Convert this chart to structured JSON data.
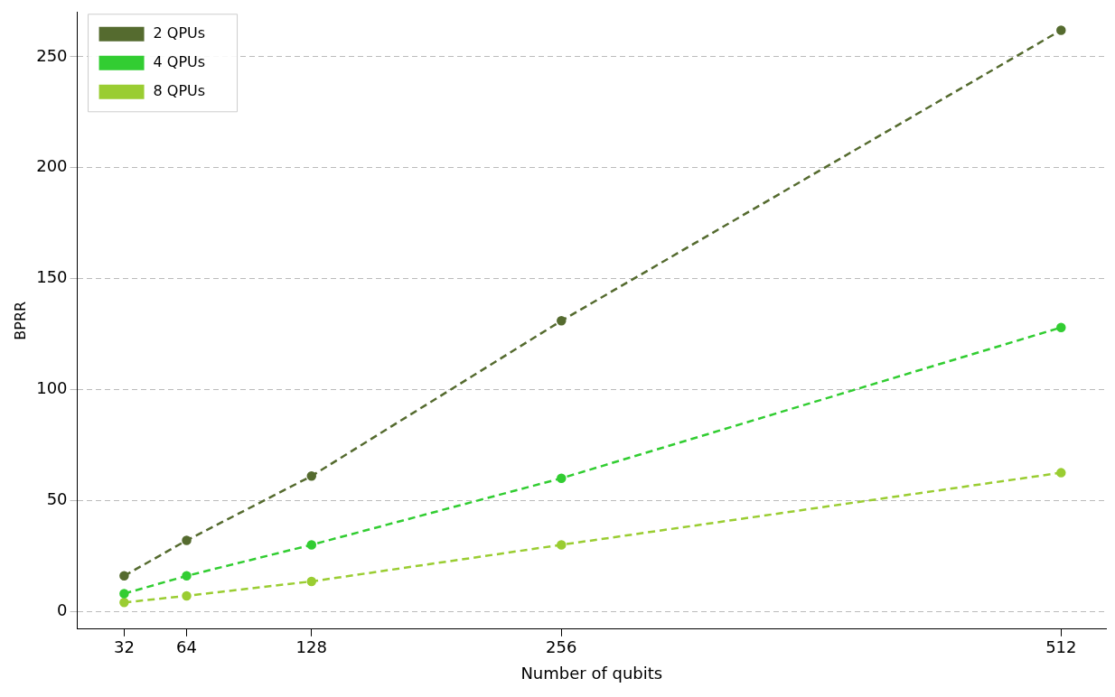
{
  "chart_data": {
    "type": "line",
    "xlabel": "Number of qubits",
    "ylabel": "BPRR",
    "x": [
      32,
      64,
      128,
      256,
      512
    ],
    "series": [
      {
        "name": "2 QPUs",
        "color": "#556b2f",
        "values": [
          16,
          32,
          61,
          131,
          262
        ]
      },
      {
        "name": "4 QPUs",
        "color": "#32cd32",
        "values": [
          8,
          16,
          30,
          60,
          128
        ]
      },
      {
        "name": "8 QPUs",
        "color": "#9acd32",
        "values": [
          4,
          7,
          13.5,
          30,
          62.5
        ]
      }
    ],
    "xlim": [
      8,
      535
    ],
    "xticks": [
      32,
      64,
      128,
      256,
      512
    ],
    "ylim": [
      -8,
      270
    ],
    "yticks": [
      0,
      50,
      100,
      150,
      200,
      250
    ],
    "grid": "y",
    "legend": "top left",
    "marker": "circle",
    "line_style": "dashed"
  }
}
